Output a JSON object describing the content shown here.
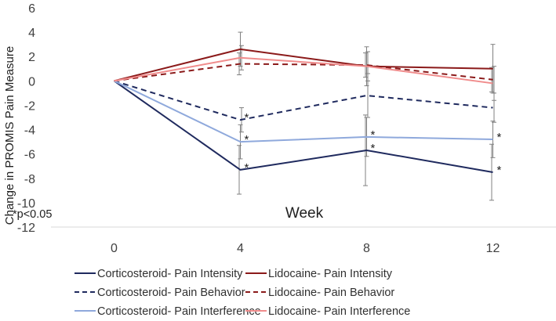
{
  "chart_data": {
    "type": "line",
    "title": "",
    "xlabel": "Week",
    "ylabel": "Change in PROMIS Pain Measure",
    "x": [
      0,
      4,
      8,
      12
    ],
    "x_ticks": [
      "0",
      "4",
      "8",
      "12"
    ],
    "xlim": [
      -2,
      14
    ],
    "ylim": [
      -12,
      6
    ],
    "y_ticks": [
      "6",
      "4",
      "2",
      "0",
      "-2",
      "-4",
      "-6",
      "-8",
      "-10",
      "-12"
    ],
    "grid": false,
    "annotation": "*p<0.05",
    "significance_marker": "*",
    "series": [
      {
        "name": "Corticosteroid- Pain Intensity",
        "values": [
          0,
          -7.3,
          -5.7,
          -7.5
        ],
        "error": [
          null,
          2.0,
          2.9,
          2.3
        ],
        "significant": [
          false,
          true,
          true,
          true
        ],
        "color": "#1f2a5e",
        "dash": "solid"
      },
      {
        "name": "Lidocaine- Pain Intensity",
        "values": [
          0,
          2.6,
          1.2,
          1.0
        ],
        "error": [
          null,
          1.4,
          1.6,
          2.0
        ],
        "significant": [
          false,
          false,
          false,
          false
        ],
        "color": "#8b1a1a",
        "dash": "solid"
      },
      {
        "name": "Corticosteroid- Pain Behavior",
        "values": [
          0,
          -3.2,
          -1.2,
          -2.2
        ],
        "error": [
          null,
          1.0,
          1.8,
          1.2
        ],
        "significant": [
          false,
          true,
          false,
          false
        ],
        "color": "#1f2a5e",
        "dash": "dash"
      },
      {
        "name": "Lidocaine- Pain Behavior",
        "values": [
          0,
          1.4,
          1.3,
          0.1
        ],
        "error": [
          null,
          0.9,
          1.0,
          1.0
        ],
        "significant": [
          false,
          false,
          false,
          false
        ],
        "color": "#8b1a1a",
        "dash": "dash"
      },
      {
        "name": "Corticosteroid- Pain Interference",
        "values": [
          0,
          -5.0,
          -4.6,
          -4.8
        ],
        "error": [
          null,
          1.4,
          1.6,
          1.5
        ],
        "significant": [
          false,
          true,
          true,
          true
        ],
        "color": "#8fa9dc",
        "dash": "solid"
      },
      {
        "name": "Lidocaine- Pain Interference",
        "values": [
          0,
          1.9,
          1.2,
          -0.2
        ],
        "error": [
          null,
          1.0,
          1.2,
          1.4
        ],
        "significant": [
          false,
          false,
          false,
          false
        ],
        "color": "#f08c8c",
        "dash": "solid"
      }
    ],
    "legend": {
      "placement": "bottom",
      "columns": 2
    }
  }
}
